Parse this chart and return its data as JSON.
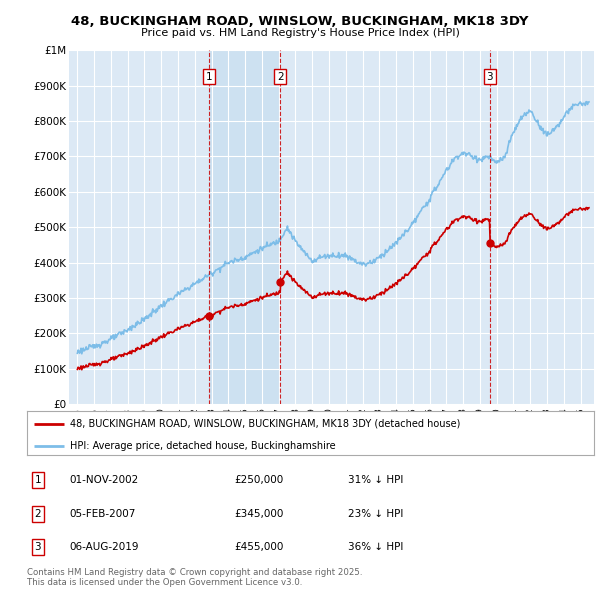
{
  "title": "48, BUCKINGHAM ROAD, WINSLOW, BUCKINGHAM, MK18 3DY",
  "subtitle": "Price paid vs. HM Land Registry's House Price Index (HPI)",
  "hpi_color": "#7dbde8",
  "price_color": "#cc0000",
  "background_color": "#ffffff",
  "plot_bg_color": "#dce9f5",
  "grid_color": "#ffffff",
  "shade_color": "#c5dff5",
  "ylim": [
    0,
    1000000
  ],
  "xlim_start": 1994.5,
  "xlim_end": 2025.8,
  "yticks": [
    0,
    100000,
    200000,
    300000,
    400000,
    500000,
    600000,
    700000,
    800000,
    900000,
    1000000
  ],
  "ytick_labels": [
    "£0",
    "£100K",
    "£200K",
    "£300K",
    "£400K",
    "£500K",
    "£600K",
    "£700K",
    "£800K",
    "£900K",
    "£1M"
  ],
  "xticks": [
    1995,
    1996,
    1997,
    1998,
    1999,
    2000,
    2001,
    2002,
    2003,
    2004,
    2005,
    2006,
    2007,
    2008,
    2009,
    2010,
    2011,
    2012,
    2013,
    2014,
    2015,
    2016,
    2017,
    2018,
    2019,
    2020,
    2021,
    2022,
    2023,
    2024,
    2025
  ],
  "purchases": [
    {
      "date": 2002.84,
      "price": 250000,
      "label": "1",
      "date_str": "01-NOV-2002",
      "price_str": "£250,000",
      "pct": "31%"
    },
    {
      "date": 2007.09,
      "price": 345000,
      "label": "2",
      "date_str": "05-FEB-2007",
      "price_str": "£345,000",
      "pct": "23%"
    },
    {
      "date": 2019.59,
      "price": 455000,
      "label": "3",
      "date_str": "06-AUG-2019",
      "price_str": "£455,000",
      "pct": "36%"
    }
  ],
  "legend_price_label": "48, BUCKINGHAM ROAD, WINSLOW, BUCKINGHAM, MK18 3DY (detached house)",
  "legend_hpi_label": "HPI: Average price, detached house, Buckinghamshire",
  "footer": "Contains HM Land Registry data © Crown copyright and database right 2025.\nThis data is licensed under the Open Government Licence v3.0.",
  "hpi_waypoints_x": [
    1995,
    1996,
    1997,
    1998,
    1999,
    2000,
    2001,
    2002,
    2003,
    2004,
    2005,
    2006,
    2007,
    2007.5,
    2008,
    2008.5,
    2009,
    2009.5,
    2010,
    2011,
    2012,
    2012.5,
    2013,
    2014,
    2015,
    2016,
    2016.5,
    2017,
    2017.5,
    2018,
    2019,
    2019.5,
    2020,
    2020.5,
    2021,
    2021.5,
    2022,
    2022.5,
    2023,
    2023.5,
    2024,
    2024.5,
    2025
  ],
  "hpi_waypoints_y": [
    148000,
    163000,
    183000,
    210000,
    240000,
    278000,
    310000,
    340000,
    370000,
    400000,
    415000,
    440000,
    460000,
    500000,
    460000,
    430000,
    405000,
    415000,
    420000,
    420000,
    395000,
    400000,
    415000,
    455000,
    510000,
    580000,
    620000,
    660000,
    695000,
    710000,
    690000,
    700000,
    680000,
    700000,
    770000,
    810000,
    830000,
    790000,
    760000,
    780000,
    810000,
    840000,
    850000
  ]
}
